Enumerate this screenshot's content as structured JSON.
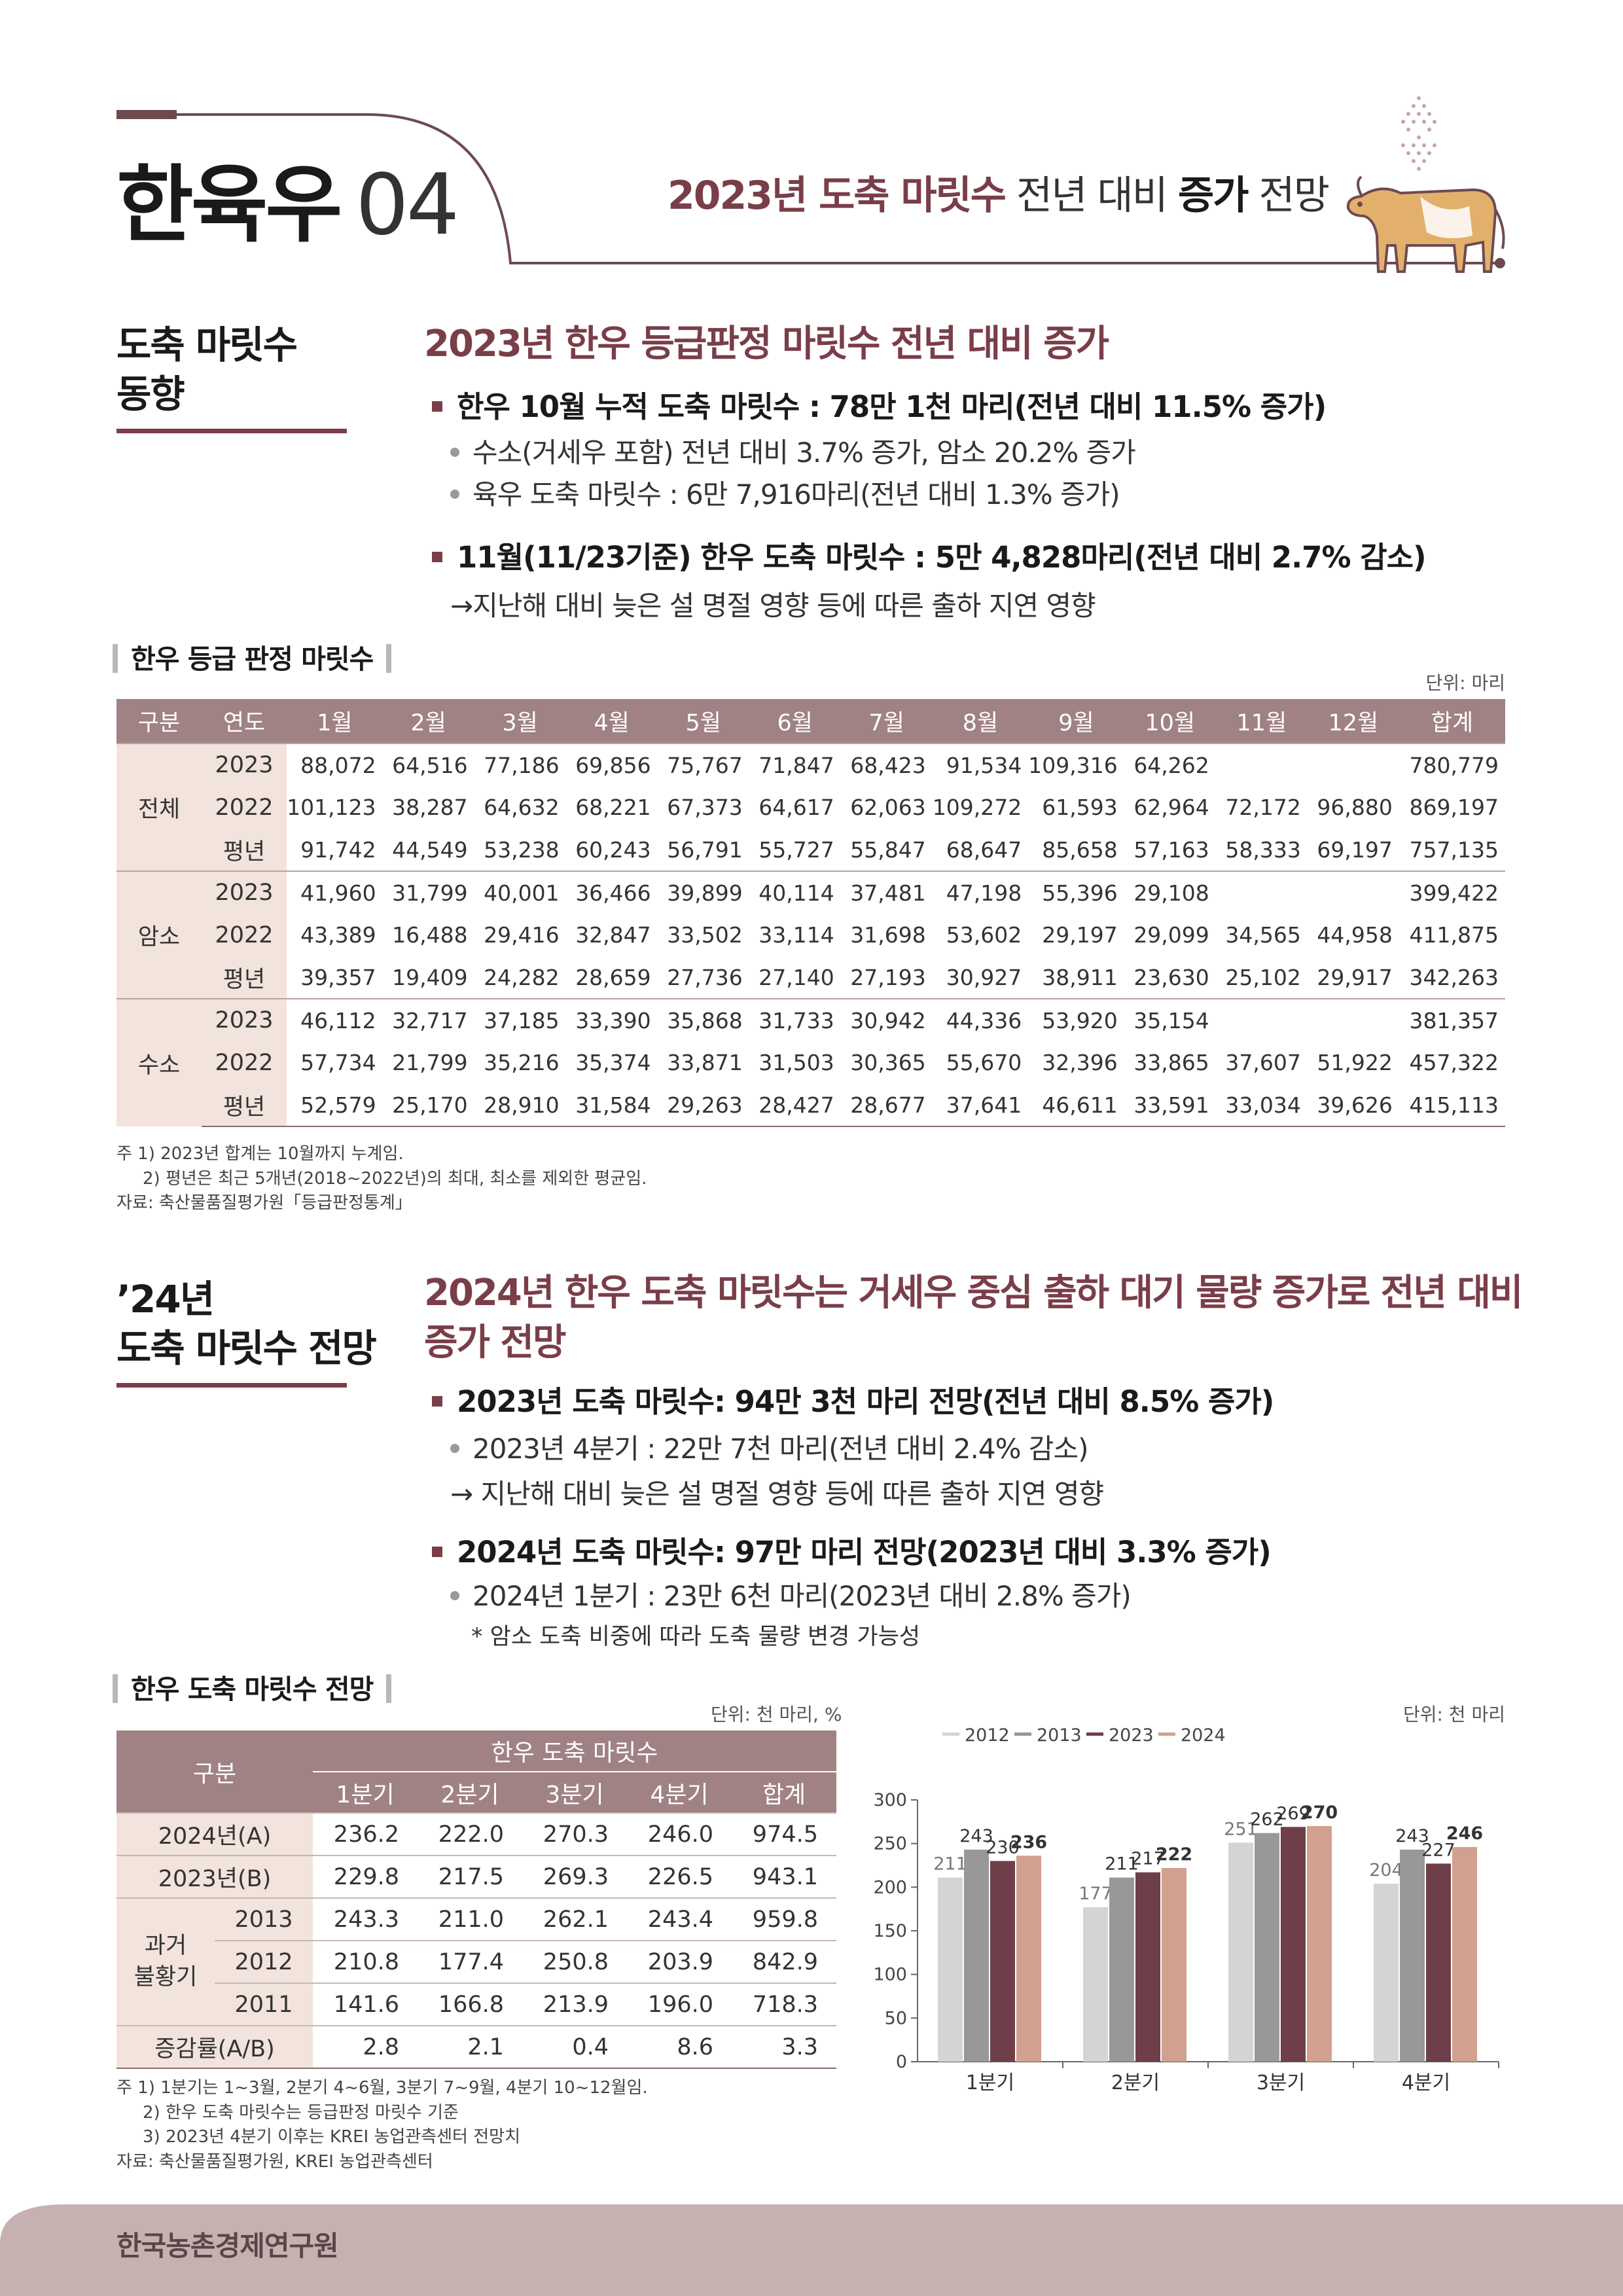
{
  "header": {
    "title": "한육우",
    "number": "04",
    "subtitle_parts": [
      "2023년 도축 마릿수",
      " 전년 대비 ",
      "증가",
      " 전망"
    ]
  },
  "section1": {
    "side_label_line1": "도축 마릿수",
    "side_label_line2": "동향",
    "heading": "2023년 한우 등급판정 마릿수 전년 대비 증가",
    "bullet1": "한우 10월 누적 도축 마릿수 : 78만 1천 마리(전년 대비 11.5% 증가)",
    "sub1": "수소(거세우 포함) 전년 대비 3.7% 증가, 암소 20.2% 증가",
    "sub2": "육우 도축 마릿수 : 6만 7,916마리(전년 대비 1.3% 증가)",
    "bullet2": "11월(11/23기준) 한우 도축 마릿수 : 5만 4,828마리(전년 대비 2.7% 감소)",
    "arrow_note": "지난해 대비 늦은 설 명절 영향 등에 따른 출하 지연 영향"
  },
  "table1": {
    "caption": "한우 등급 판정 마릿수",
    "unit": "단위: 마리",
    "headers": [
      "구분",
      "연도",
      "1월",
      "2월",
      "3월",
      "4월",
      "5월",
      "6월",
      "7월",
      "8월",
      "9월",
      "10월",
      "11월",
      "12월",
      "합계"
    ],
    "groups": [
      {
        "name": "전체",
        "rows": [
          {
            "year": "2023",
            "values": [
              "88,072",
              "64,516",
              "77,186",
              "69,856",
              "75,767",
              "71,847",
              "68,423",
              "91,534",
              "109,316",
              "64,262",
              "",
              "",
              "780,779"
            ]
          },
          {
            "year": "2022",
            "values": [
              "101,123",
              "38,287",
              "64,632",
              "68,221",
              "67,373",
              "64,617",
              "62,063",
              "109,272",
              "61,593",
              "62,964",
              "72,172",
              "96,880",
              "869,197"
            ]
          },
          {
            "year": "평년",
            "values": [
              "91,742",
              "44,549",
              "53,238",
              "60,243",
              "56,791",
              "55,727",
              "55,847",
              "68,647",
              "85,658",
              "57,163",
              "58,333",
              "69,197",
              "757,135"
            ]
          }
        ]
      },
      {
        "name": "암소",
        "rows": [
          {
            "year": "2023",
            "values": [
              "41,960",
              "31,799",
              "40,001",
              "36,466",
              "39,899",
              "40,114",
              "37,481",
              "47,198",
              "55,396",
              "29,108",
              "",
              "",
              "399,422"
            ]
          },
          {
            "year": "2022",
            "values": [
              "43,389",
              "16,488",
              "29,416",
              "32,847",
              "33,502",
              "33,114",
              "31,698",
              "53,602",
              "29,197",
              "29,099",
              "34,565",
              "44,958",
              "411,875"
            ]
          },
          {
            "year": "평년",
            "values": [
              "39,357",
              "19,409",
              "24,282",
              "28,659",
              "27,736",
              "27,140",
              "27,193",
              "30,927",
              "38,911",
              "23,630",
              "25,102",
              "29,917",
              "342,263"
            ]
          }
        ]
      },
      {
        "name": "수소",
        "rows": [
          {
            "year": "2023",
            "values": [
              "46,112",
              "32,717",
              "37,185",
              "33,390",
              "35,868",
              "31,733",
              "30,942",
              "44,336",
              "53,920",
              "35,154",
              "",
              "",
              "381,357"
            ]
          },
          {
            "year": "2022",
            "values": [
              "57,734",
              "21,799",
              "35,216",
              "35,374",
              "33,871",
              "31,503",
              "30,365",
              "55,670",
              "32,396",
              "33,865",
              "37,607",
              "51,922",
              "457,322"
            ]
          },
          {
            "year": "평년",
            "values": [
              "52,579",
              "25,170",
              "28,910",
              "31,584",
              "29,263",
              "28,427",
              "28,677",
              "37,641",
              "46,611",
              "33,591",
              "33,034",
              "39,626",
              "415,113"
            ]
          }
        ]
      }
    ],
    "notes": [
      "주  1) 2023년 합계는 10월까지 누계임.",
      "2) 평년은 최근 5개년(2018~2022년)의 최대, 최소를 제외한 평균임.",
      "자료: 축산물품질평가원「등급판정통계」"
    ]
  },
  "section2": {
    "side_label_line1": "’24년",
    "side_label_line2": "도축 마릿수 전망",
    "heading_line1": "2024년 한우 도축 마릿수는 거세우 중심 출하 대기 물량 증가로 전년 대비",
    "heading_line2": "증가 전망",
    "bullet1": "2023년 도축 마릿수: 94만 3천 마리 전망(전년 대비 8.5% 증가)",
    "sub1": "2023년 4분기 : 22만 7천 마리(전년 대비 2.4% 감소)",
    "arrow_note": "지난해 대비 늦은 설 명절 영향 등에 따른 출하 지연 영향",
    "bullet2": "2024년 도축 마릿수: 97만 마리 전망(2023년 대비 3.3% 증가)",
    "sub2": "2024년 1분기 : 23만 6천 마리(2023년 대비 2.8% 증가)",
    "footnote": "* 암소 도축 비중에 따라 도축 물량 변경 가능성"
  },
  "table2": {
    "caption": "한우 도축 마릿수 전망",
    "unit": "단위: 천 마리, %",
    "header_group": "구분",
    "header_span": "한우 도축 마릿수",
    "headers": [
      "1분기",
      "2분기",
      "3분기",
      "4분기",
      "합계"
    ],
    "rows": [
      {
        "label": "2024년(A)",
        "values": [
          "236.2",
          "222.0",
          "270.3",
          "246.0",
          "974.5"
        ]
      },
      {
        "label": "2023년(B)",
        "values": [
          "229.8",
          "217.5",
          "269.3",
          "226.5",
          "943.1"
        ]
      }
    ],
    "past_label_line1": "과거",
    "past_label_line2": "불황기",
    "past_rows": [
      {
        "label": "2013",
        "values": [
          "243.3",
          "211.0",
          "262.1",
          "243.4",
          "959.8"
        ]
      },
      {
        "label": "2012",
        "values": [
          "210.8",
          "177.4",
          "250.8",
          "203.9",
          "842.9"
        ]
      },
      {
        "label": "2011",
        "values": [
          "141.6",
          "166.8",
          "213.9",
          "196.0",
          "718.3"
        ]
      }
    ],
    "rate_row": {
      "label": "증감률(A/B)",
      "values": [
        "2.8",
        "2.1",
        "0.4",
        "8.6",
        "3.3"
      ]
    },
    "notes": [
      "주  1) 1분기는 1~3월, 2분기 4~6월, 3분기 7~9월, 4분기 10~12월임.",
      "2) 한우 도축 마릿수는 등급판정 마릿수 기준",
      "3) 2023년 4분기 이후는 KREI 농업관측센터 전망치",
      "자료: 축산물품질평가원, KREI 농업관측센터"
    ]
  },
  "chart_data": {
    "type": "bar",
    "unit": "단위: 천 마리",
    "categories": [
      "1분기",
      "2분기",
      "3분기",
      "4분기"
    ],
    "series": [
      {
        "name": "2012",
        "color": "#d4d4d4",
        "values": [
          211,
          177,
          251,
          204
        ]
      },
      {
        "name": "2013",
        "color": "#98989a",
        "values": [
          243,
          211,
          262,
          243
        ]
      },
      {
        "name": "2023",
        "color": "#6e3f49",
        "values": [
          230,
          217,
          269,
          227
        ]
      },
      {
        "name": "2024",
        "color": "#d2a08e",
        "values": [
          236,
          222,
          270,
          246
        ]
      }
    ],
    "ylim": [
      0,
      300
    ],
    "yticks": [
      0,
      50,
      100,
      150,
      200,
      250,
      300
    ],
    "legend": "top",
    "grid": false
  },
  "footer": {
    "org": "한국농촌경제연구원"
  }
}
